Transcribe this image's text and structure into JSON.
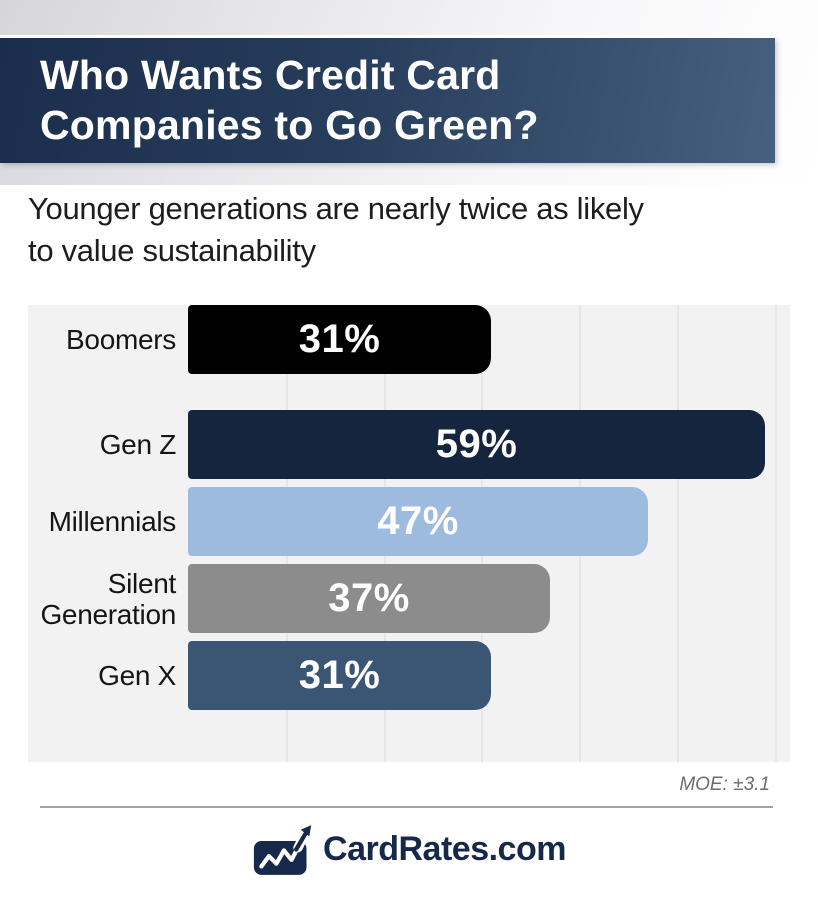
{
  "header": {
    "title_lines": [
      "Who Wants Credit Card",
      "Companies to Go Green?"
    ]
  },
  "subtitle": {
    "lines": [
      "Younger generations are nearly twice as likely",
      "to value sustainability"
    ]
  },
  "chart_data": {
    "type": "bar",
    "orientation": "horizontal",
    "title": "Who Wants Credit Card Companies to Go Green?",
    "subtitle": "Younger generations are nearly twice as likely to value sustainability",
    "categories": [
      "Gen Z",
      "Millennials",
      "Silent Generation",
      "Gen X",
      "Boomers"
    ],
    "values": [
      59,
      47,
      37,
      31,
      31
    ],
    "value_labels": [
      "59%",
      "47%",
      "37%",
      "31%",
      "31%"
    ],
    "bar_colors": [
      "#15253e",
      "#9cbbdf",
      "#8c8c8c",
      "#3b5575",
      "#000000"
    ],
    "value_label_color": "#ffffff",
    "xlabel": "",
    "ylabel": "",
    "xlim": [
      0,
      60
    ],
    "grid": true,
    "grid_interval_pct": 10,
    "legend": false,
    "panel_bg": "#f2f2f3"
  },
  "footnote": {
    "moe": "MOE: ±3.1"
  },
  "branding": {
    "logo_text": "CardRates.com",
    "logo_icon": "card-with-rising-chart-arrow",
    "brand_color": "#16294a"
  },
  "colors": {
    "banner_left": "#1b2d4c",
    "banner_right": "#46607e",
    "divider": "#a2a2a2"
  }
}
